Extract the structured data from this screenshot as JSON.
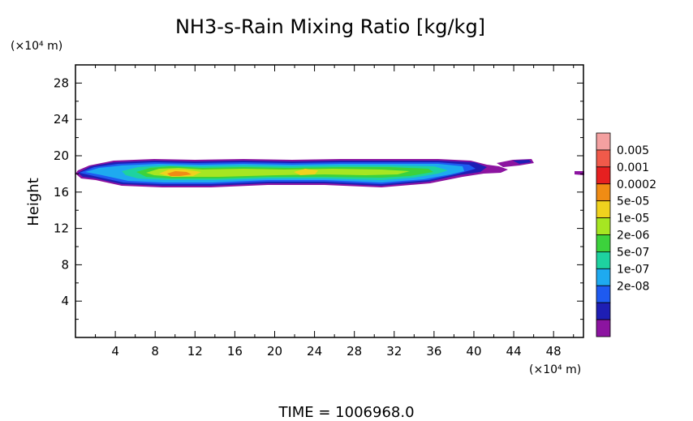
{
  "chart_data": {
    "type": "heatmap",
    "title": "NH3-s-Rain Mixing Ratio [kg/kg]",
    "ylabel": "Height",
    "y_unit": "(×10⁴ m)",
    "x_unit": "(×10⁴ m)",
    "xlabel": "",
    "xlim": [
      0,
      51
    ],
    "ylim": [
      0,
      30
    ],
    "x_ticks": [
      "4",
      "8",
      "12",
      "16",
      "20",
      "24",
      "28",
      "32",
      "36",
      "40",
      "44",
      "48"
    ],
    "y_ticks": [
      "4",
      "8",
      "12",
      "16",
      "20",
      "24",
      "28"
    ],
    "x_tick_values": [
      4,
      8,
      12,
      16,
      20,
      24,
      28,
      32,
      36,
      40,
      44,
      48
    ],
    "y_tick_values": [
      4,
      8,
      12,
      16,
      20,
      24,
      28
    ],
    "colorbar": {
      "levels": [
        "0.005",
        "0.001",
        "0.0002",
        "5e-05",
        "1e-05",
        "2e-06",
        "5e-07",
        "1e-07",
        "2e-08"
      ],
      "colors": [
        "#f4a0a0",
        "#f05a4a",
        "#e62020",
        "#f08c14",
        "#f0d21e",
        "#a6e622",
        "#3cd23c",
        "#1ed2a0",
        "#1eaaf0",
        "#1e5af0",
        "#1e1eb4",
        "#8c14a0"
      ]
    },
    "layer": {
      "height_range": [
        17,
        19.5
      ],
      "x_range": [
        0.2,
        51
      ],
      "core_max_level": "0.0002",
      "core_x": 10.5,
      "core_y": 18.0
    },
    "footer": "TIME =  1006968.0"
  }
}
